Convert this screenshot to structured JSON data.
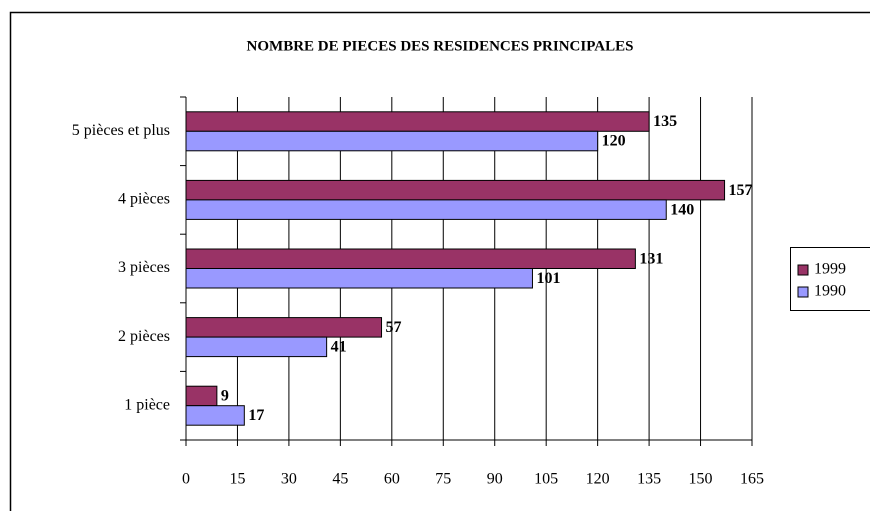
{
  "chart_data": {
    "type": "hbar",
    "title": "NOMBRE DE PIECES DES RESIDENCES PRINCIPALES",
    "categories": [
      "1 pièce",
      "2 pièces",
      "3 pièces",
      "4 pièces",
      "5 pièces et plus"
    ],
    "series": [
      {
        "name": "1999",
        "color": "#993366",
        "values": [
          9,
          57,
          131,
          157,
          135
        ]
      },
      {
        "name": "1990",
        "color": "#9999ff",
        "values": [
          17,
          41,
          101,
          140,
          120
        ]
      }
    ],
    "xlim": [
      0,
      165
    ],
    "xticks": [
      0,
      15,
      30,
      45,
      60,
      75,
      90,
      105,
      120,
      135,
      150,
      165
    ],
    "grid": true,
    "legend": "right"
  }
}
